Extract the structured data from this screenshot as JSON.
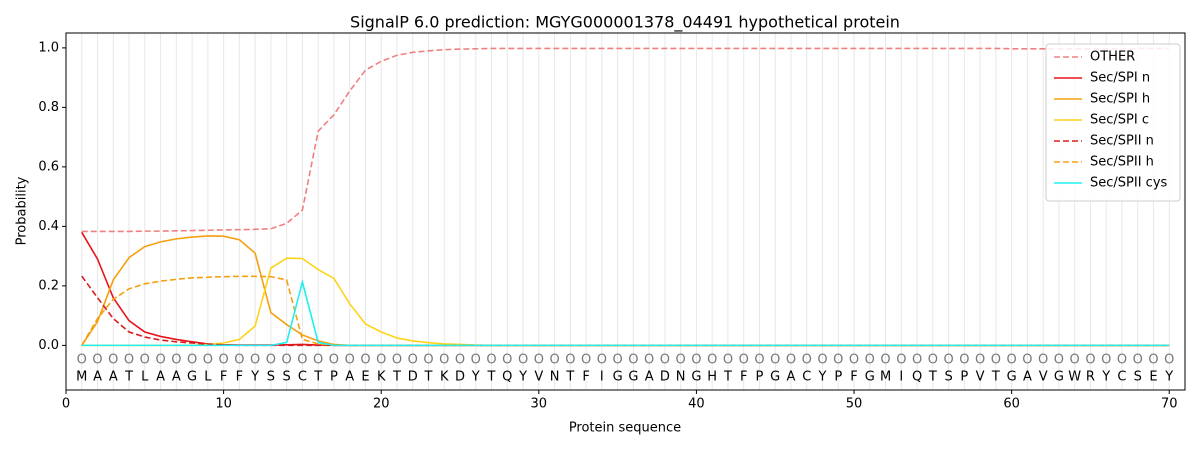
{
  "chart_data": {
    "type": "line",
    "title": "SignalP 6.0 prediction: MGYG000001378_04491 hypothetical protein",
    "x_label": "Protein sequence",
    "y_label": "Probability",
    "x": [
      1,
      2,
      3,
      4,
      5,
      6,
      7,
      8,
      9,
      10,
      11,
      12,
      13,
      14,
      15,
      16,
      17,
      18,
      19,
      20,
      21,
      22,
      23,
      24,
      25,
      26,
      27,
      28,
      29,
      30,
      31,
      32,
      33,
      34,
      35,
      36,
      37,
      38,
      39,
      40,
      41,
      42,
      43,
      44,
      45,
      46,
      47,
      48,
      49,
      50,
      51,
      52,
      53,
      54,
      55,
      56,
      57,
      58,
      59,
      60,
      61,
      62,
      63,
      64,
      65,
      66,
      67,
      68,
      69,
      70
    ],
    "sequence": [
      "M",
      "A",
      "A",
      "T",
      "L",
      "A",
      "A",
      "G",
      "L",
      "F",
      "F",
      "Y",
      "S",
      "S",
      "C",
      "T",
      "P",
      "A",
      "E",
      "K",
      "T",
      "D",
      "T",
      "K",
      "D",
      "Y",
      "T",
      "Q",
      "Y",
      "V",
      "N",
      "T",
      "F",
      "I",
      "G",
      "G",
      "A",
      "D",
      "N",
      "G",
      "H",
      "T",
      "F",
      "P",
      "G",
      "A",
      "C",
      "Y",
      "P",
      "F",
      "G",
      "M",
      "I",
      "Q",
      "T",
      "S",
      "P",
      "V",
      "T",
      "G",
      "A",
      "V",
      "G",
      "W",
      "R",
      "Y",
      "C",
      "S",
      "E",
      "Y"
    ],
    "annotations": [
      "O",
      "O",
      "O",
      "O",
      "O",
      "O",
      "O",
      "O",
      "O",
      "O",
      "O",
      "O",
      "O",
      "O",
      "O",
      "O",
      "O",
      "O",
      "O",
      "O",
      "O",
      "O",
      "O",
      "O",
      "O",
      "O",
      "O",
      "O",
      "O",
      "O",
      "O",
      "O",
      "O",
      "O",
      "O",
      "O",
      "O",
      "O",
      "O",
      "O",
      "O",
      "O",
      "O",
      "O",
      "O",
      "O",
      "O",
      "O",
      "O",
      "O",
      "O",
      "O",
      "O",
      "O",
      "O",
      "O",
      "O",
      "O",
      "O",
      "O",
      "O",
      "O",
      "O",
      "O",
      "O",
      "O",
      "O",
      "O",
      "O",
      "O"
    ],
    "xlim": [
      0,
      71
    ],
    "ylim": [
      -0.15,
      1.05
    ],
    "xticks": [
      0,
      10,
      20,
      30,
      40,
      50,
      60,
      70
    ],
    "yticks": [
      {
        "value": 0,
        "label": "0.0"
      },
      {
        "value": 0.2,
        "label": "0.2"
      },
      {
        "value": 0.4,
        "label": "0.4"
      },
      {
        "value": 0.6,
        "label": "0.6"
      },
      {
        "value": 0.8,
        "label": "0.8"
      },
      {
        "value": 1,
        "label": "1.0"
      }
    ],
    "grid": true,
    "legend": "upper right",
    "series": [
      {
        "name": "OTHER",
        "color": "#f08080",
        "dash": true,
        "values": [
          0.383,
          0.383,
          0.383,
          0.383,
          0.384,
          0.384,
          0.385,
          0.386,
          0.387,
          0.388,
          0.389,
          0.39,
          0.392,
          0.41,
          0.455,
          0.72,
          0.775,
          0.855,
          0.925,
          0.955,
          0.975,
          0.985,
          0.99,
          0.994,
          0.996,
          0.997,
          0.998,
          0.998,
          0.998,
          0.998,
          0.998,
          0.998,
          0.998,
          0.998,
          0.998,
          0.998,
          0.998,
          0.998,
          0.998,
          0.998,
          0.998,
          0.998,
          0.998,
          0.998,
          0.998,
          0.998,
          0.998,
          0.998,
          0.998,
          0.998,
          0.998,
          0.998,
          0.998,
          0.998,
          0.998,
          0.998,
          0.998,
          0.998,
          0.998,
          0.997,
          0.997,
          0.997,
          0.997,
          0.997,
          0.997,
          0.997,
          0.997,
          0.998,
          0.998,
          0.998
        ]
      },
      {
        "name": "Sec/SPI n",
        "color": "#e8141a",
        "dash": false,
        "values": [
          0.38,
          0.29,
          0.16,
          0.083,
          0.045,
          0.03,
          0.02,
          0.012,
          0.005,
          0.002,
          0.001,
          0.001,
          0.001,
          0.002,
          0.003,
          0.001,
          0,
          0,
          0,
          0,
          0,
          0,
          0,
          0,
          0,
          0,
          0,
          0,
          0,
          0,
          0,
          0,
          0,
          0,
          0,
          0,
          0,
          0,
          0,
          0,
          0,
          0,
          0,
          0,
          0,
          0,
          0,
          0,
          0,
          0,
          0,
          0,
          0,
          0,
          0,
          0,
          0,
          0,
          0,
          0,
          0,
          0,
          0,
          0,
          0,
          0,
          0,
          0,
          0,
          0
        ]
      },
      {
        "name": "Sec/SPI h",
        "color": "#f5a010",
        "dash": false,
        "values": [
          0,
          0.08,
          0.22,
          0.295,
          0.332,
          0.348,
          0.358,
          0.364,
          0.368,
          0.367,
          0.355,
          0.31,
          0.11,
          0.07,
          0.035,
          0.015,
          0.003,
          0,
          0,
          0,
          0,
          0,
          0,
          0,
          0,
          0,
          0,
          0,
          0,
          0,
          0,
          0,
          0,
          0,
          0,
          0,
          0,
          0,
          0,
          0,
          0,
          0,
          0,
          0,
          0,
          0,
          0,
          0,
          0,
          0,
          0,
          0,
          0,
          0,
          0,
          0,
          0,
          0,
          0,
          0,
          0,
          0,
          0,
          0,
          0,
          0,
          0,
          0,
          0,
          0
        ]
      },
      {
        "name": "Sec/SPI c",
        "color": "#ffd21a",
        "dash": false,
        "values": [
          0,
          0,
          0,
          0,
          0,
          0,
          0,
          0,
          0.003,
          0.008,
          0.02,
          0.065,
          0.26,
          0.293,
          0.292,
          0.255,
          0.225,
          0.14,
          0.072,
          0.045,
          0.025,
          0.015,
          0.009,
          0.005,
          0.003,
          0.001,
          0,
          0,
          0,
          0,
          0,
          0,
          0,
          0,
          0,
          0,
          0,
          0,
          0,
          0,
          0,
          0,
          0,
          0,
          0,
          0,
          0,
          0,
          0,
          0,
          0,
          0,
          0,
          0,
          0,
          0,
          0,
          0,
          0,
          0,
          0,
          0,
          0,
          0,
          0,
          0,
          0,
          0,
          0,
          0
        ]
      },
      {
        "name": "Sec/SPII n",
        "color": "#d81e1e",
        "dash": true,
        "values": [
          0.233,
          0.16,
          0.09,
          0.045,
          0.028,
          0.018,
          0.012,
          0.008,
          0.004,
          0.002,
          0,
          0,
          0,
          0,
          0,
          0,
          0,
          0,
          0,
          0,
          0,
          0,
          0,
          0,
          0,
          0,
          0,
          0,
          0,
          0,
          0,
          0,
          0,
          0,
          0,
          0,
          0,
          0,
          0,
          0,
          0,
          0,
          0,
          0,
          0,
          0,
          0,
          0,
          0,
          0,
          0,
          0,
          0,
          0,
          0,
          0,
          0,
          0,
          0,
          0,
          0,
          0,
          0,
          0,
          0,
          0,
          0,
          0,
          0,
          0
        ]
      },
      {
        "name": "Sec/SPII h",
        "color": "#f5a010",
        "dash": true,
        "values": [
          0,
          0.09,
          0.155,
          0.19,
          0.207,
          0.216,
          0.222,
          0.227,
          0.229,
          0.231,
          0.232,
          0.232,
          0.231,
          0.22,
          0.02,
          0.005,
          0,
          0,
          0,
          0,
          0,
          0,
          0,
          0,
          0,
          0,
          0,
          0,
          0,
          0,
          0,
          0,
          0,
          0,
          0,
          0,
          0,
          0,
          0,
          0,
          0,
          0,
          0,
          0,
          0,
          0,
          0,
          0,
          0,
          0,
          0,
          0,
          0,
          0,
          0,
          0,
          0,
          0,
          0,
          0,
          0,
          0,
          0,
          0,
          0,
          0,
          0,
          0,
          0,
          0
        ]
      },
      {
        "name": "Sec/SPII cys",
        "color": "#1ef0f0",
        "dash": false,
        "values": [
          0,
          0,
          0,
          0,
          0,
          0,
          0,
          0,
          0,
          0,
          0,
          0,
          0,
          0.01,
          0.213,
          0.01,
          0,
          0,
          0,
          0,
          0,
          0,
          0,
          0,
          0,
          0,
          0,
          0,
          0,
          0,
          0,
          0,
          0,
          0,
          0,
          0,
          0,
          0,
          0,
          0,
          0,
          0,
          0,
          0,
          0,
          0,
          0,
          0,
          0,
          0,
          0,
          0,
          0,
          0,
          0,
          0,
          0,
          0,
          0,
          0,
          0,
          0,
          0,
          0,
          0,
          0,
          0,
          0,
          0,
          0
        ]
      }
    ]
  }
}
